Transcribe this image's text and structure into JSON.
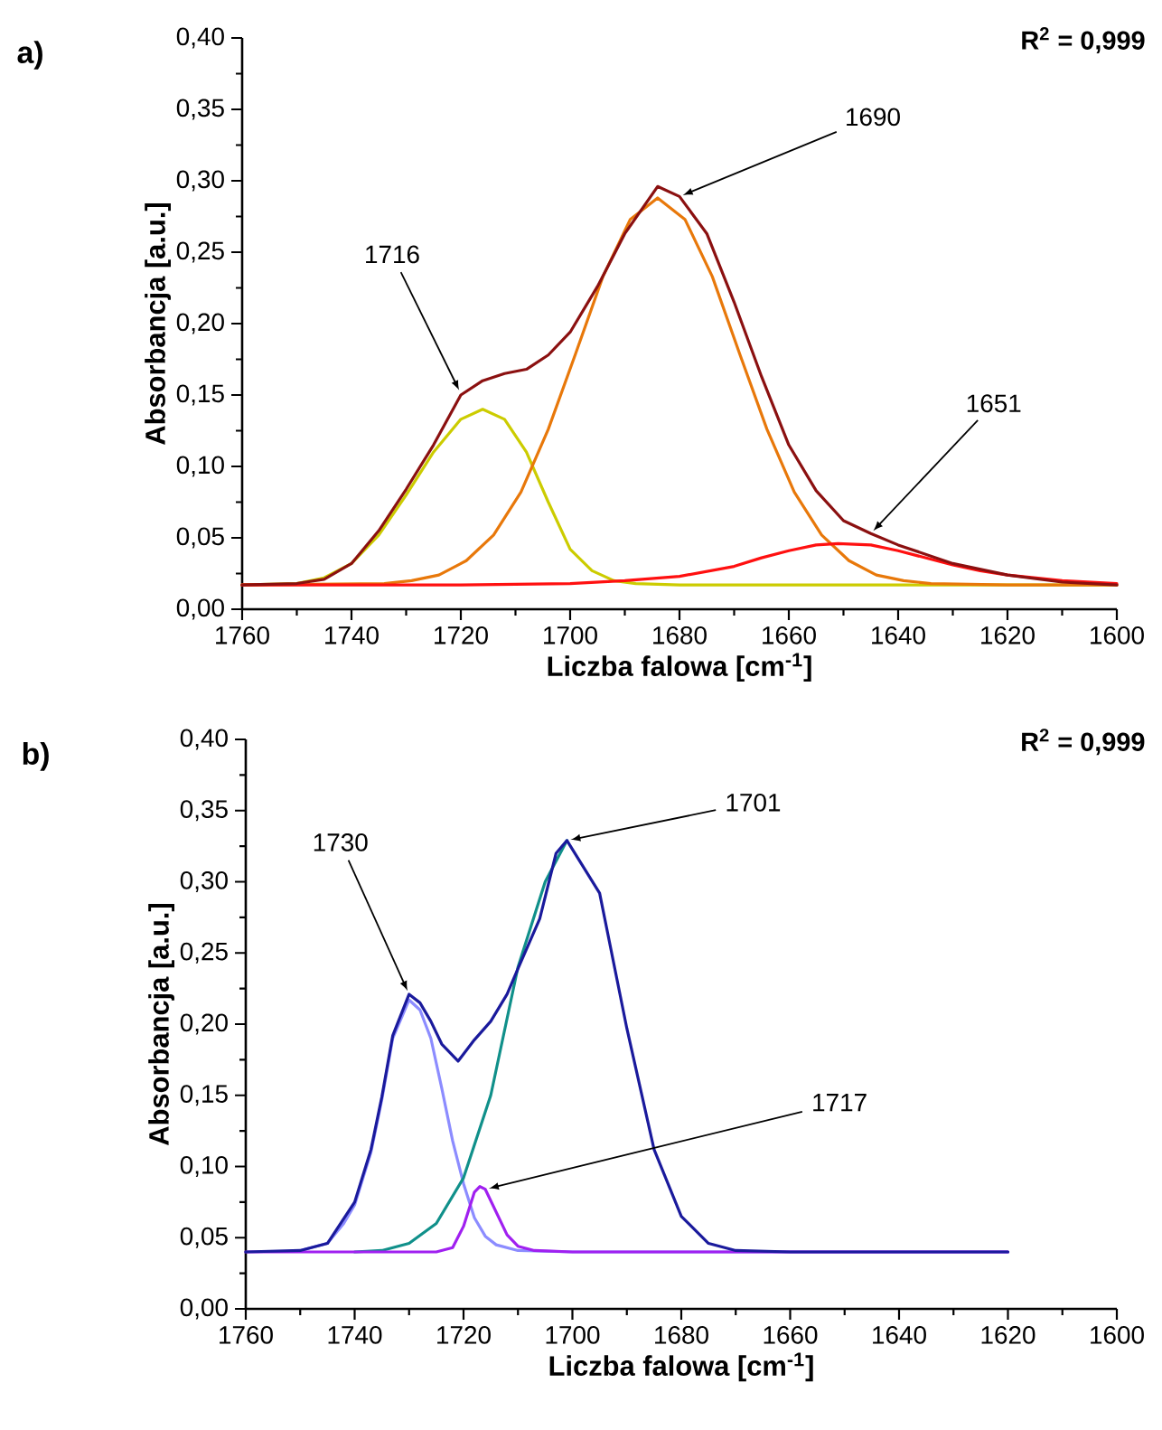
{
  "chart_data": [
    {
      "type": "line",
      "title": "a)",
      "xlabel": "Liczba falowa [cm$^{-1}$]",
      "ylabel": "Absorbancja [a.u.]",
      "xlim": [
        1760,
        1600
      ],
      "xticks": [
        1760,
        1740,
        1720,
        1700,
        1680,
        1660,
        1640,
        1620,
        1600
      ],
      "ylim": [
        0,
        0.4
      ],
      "yticks": [
        {
          "value": 0,
          "label": "0,00"
        },
        {
          "value": 0.05,
          "label": "0,05"
        },
        {
          "value": 0.1,
          "label": "0,10"
        },
        {
          "value": 0.15,
          "label": "0,15"
        },
        {
          "value": 0.2,
          "label": "0,20"
        },
        {
          "value": 0.25,
          "label": "0,25"
        },
        {
          "value": 0.3,
          "label": "0,30"
        },
        {
          "value": 0.35,
          "label": "0,35"
        },
        {
          "value": 0.4,
          "label": "0,40"
        }
      ],
      "annotations": [
        "R$^{2}$ = 0,999",
        {
          "text": "1716",
          "x": 1720,
          "y": 0.151
        },
        {
          "text": "1690",
          "x": 1680,
          "y": 0.289
        },
        {
          "text": "1651",
          "x": 1645,
          "y": 0.053
        }
      ],
      "series": [
        {
          "color": "#cccc00",
          "x": [
            1760,
            1750,
            1745,
            1740,
            1735,
            1730,
            1725,
            1720,
            1716,
            1712,
            1708,
            1704,
            1700,
            1696,
            1692,
            1688,
            1680,
            1600
          ],
          "values": [
            0.017,
            0.018,
            0.022,
            0.032,
            0.052,
            0.08,
            0.11,
            0.133,
            0.14,
            0.133,
            0.11,
            0.075,
            0.042,
            0.027,
            0.02,
            0.018,
            0.017,
            0.017
          ]
        },
        {
          "color": "#e8780a",
          "x": [
            1760,
            1734,
            1729,
            1724,
            1719,
            1714,
            1709,
            1704,
            1699,
            1694,
            1689,
            1684,
            1679,
            1674,
            1669,
            1664,
            1659,
            1654,
            1649,
            1644,
            1639,
            1634,
            1620,
            1600
          ],
          "values": [
            0.017,
            0.018,
            0.02,
            0.024,
            0.034,
            0.052,
            0.082,
            0.126,
            0.179,
            0.233,
            0.273,
            0.288,
            0.273,
            0.233,
            0.179,
            0.126,
            0.082,
            0.052,
            0.034,
            0.024,
            0.02,
            0.018,
            0.017,
            0.017
          ]
        },
        {
          "color": "#ff1010",
          "x": [
            1760,
            1720,
            1700,
            1690,
            1680,
            1670,
            1665,
            1660,
            1655,
            1651,
            1645,
            1640,
            1635,
            1630,
            1625,
            1620,
            1610,
            1600
          ],
          "values": [
            0.017,
            0.017,
            0.018,
            0.02,
            0.023,
            0.03,
            0.036,
            0.041,
            0.045,
            0.046,
            0.045,
            0.041,
            0.036,
            0.031,
            0.027,
            0.024,
            0.02,
            0.018
          ]
        },
        {
          "color": "#8b1010",
          "x": [
            1760,
            1750,
            1745,
            1740,
            1735,
            1730,
            1725,
            1720,
            1716,
            1712,
            1708,
            1704,
            1700,
            1695,
            1690,
            1684,
            1680,
            1675,
            1670,
            1665,
            1660,
            1655,
            1650,
            1645,
            1640,
            1630,
            1620,
            1610,
            1600
          ],
          "values": [
            0.017,
            0.018,
            0.021,
            0.032,
            0.055,
            0.084,
            0.115,
            0.15,
            0.16,
            0.165,
            0.168,
            0.178,
            0.194,
            0.226,
            0.263,
            0.296,
            0.289,
            0.263,
            0.215,
            0.163,
            0.115,
            0.083,
            0.062,
            0.053,
            0.045,
            0.032,
            0.024,
            0.019,
            0.017
          ]
        }
      ]
    },
    {
      "type": "line",
      "title": "b)",
      "xlabel": "Liczba falowa [cm$^{-1}$]",
      "ylabel": "Absorbancja [a.u.]",
      "xlim": [
        1760,
        1600
      ],
      "xticks": [
        1760,
        1740,
        1720,
        1700,
        1680,
        1660,
        1640,
        1620,
        1600
      ],
      "ylim": [
        0,
        0.4
      ],
      "yticks": [
        {
          "value": 0,
          "label": "0,00"
        },
        {
          "value": 0.05,
          "label": "0,05"
        },
        {
          "value": 0.1,
          "label": "0,10"
        },
        {
          "value": 0.15,
          "label": "0,15"
        },
        {
          "value": 0.2,
          "label": "0,20"
        },
        {
          "value": 0.25,
          "label": "0,25"
        },
        {
          "value": 0.3,
          "label": "0,30"
        },
        {
          "value": 0.35,
          "label": "0,35"
        },
        {
          "value": 0.4,
          "label": "0,40"
        }
      ],
      "annotations": [
        "R$^{2}$ = 0,999",
        {
          "text": "1730",
          "x": 1730,
          "y": 0.221
        },
        {
          "text": "1701",
          "x": 1701,
          "y": 0.329
        },
        {
          "text": "1717",
          "x": 1716,
          "y": 0.084
        }
      ],
      "series": [
        {
          "color": "#8c8cff",
          "x": [
            1750,
            1745,
            1742,
            1740,
            1737,
            1735,
            1733,
            1730,
            1728,
            1726,
            1724,
            1722,
            1720,
            1718,
            1716,
            1714,
            1710,
            1700,
            1620
          ],
          "values": [
            0.041,
            0.046,
            0.06,
            0.073,
            0.11,
            0.147,
            0.19,
            0.217,
            0.21,
            0.19,
            0.155,
            0.118,
            0.088,
            0.064,
            0.051,
            0.045,
            0.041,
            0.04,
            0.04
          ]
        },
        {
          "color": "#10908a",
          "x": [
            1740,
            1735,
            1730,
            1725,
            1720,
            1715,
            1710,
            1705,
            1701
          ],
          "values": [
            0.04,
            0.041,
            0.046,
            0.06,
            0.092,
            0.15,
            0.24,
            0.3,
            0.329
          ]
        },
        {
          "color": "#a020f0",
          "x": [
            1760,
            1725,
            1722,
            1720,
            1718,
            1717,
            1716,
            1714,
            1712,
            1710,
            1707,
            1700,
            1620
          ],
          "values": [
            0.04,
            0.04,
            0.043,
            0.058,
            0.082,
            0.086,
            0.084,
            0.068,
            0.052,
            0.044,
            0.041,
            0.04,
            0.04
          ]
        },
        {
          "color": "#1a1a9c",
          "x": [
            1760,
            1750,
            1745,
            1740,
            1737,
            1735,
            1733,
            1730,
            1728,
            1726,
            1724,
            1721,
            1718,
            1715,
            1712,
            1710,
            1706,
            1703,
            1701,
            1695,
            1690,
            1685,
            1680,
            1675,
            1670,
            1660,
            1620
          ],
          "values": [
            0.04,
            0.041,
            0.046,
            0.075,
            0.112,
            0.149,
            0.192,
            0.221,
            0.215,
            0.202,
            0.186,
            0.174,
            0.189,
            0.202,
            0.221,
            0.239,
            0.274,
            0.32,
            0.329,
            0.292,
            0.197,
            0.112,
            0.065,
            0.046,
            0.041,
            0.04,
            0.04
          ]
        }
      ]
    }
  ]
}
